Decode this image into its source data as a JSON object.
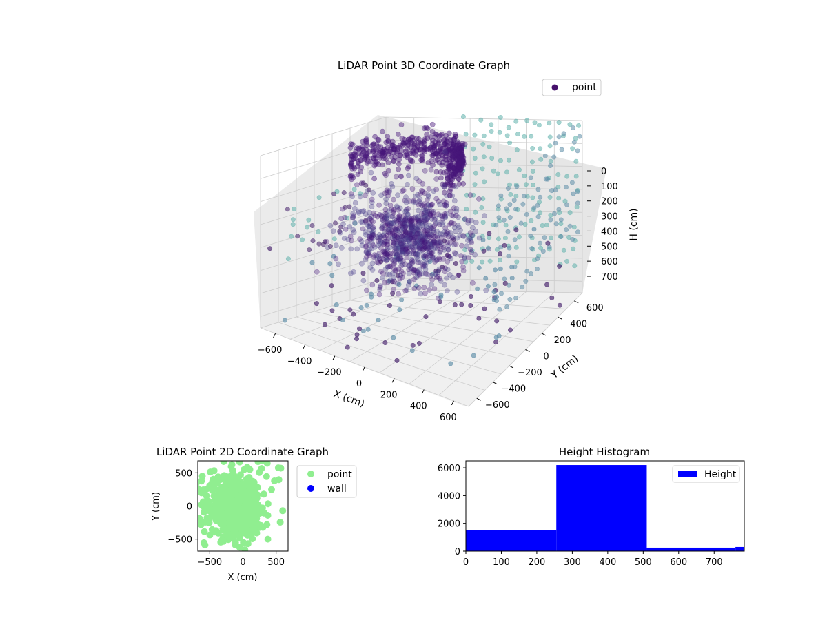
{
  "colors": {
    "point_cyan": "#5fb0ab",
    "point_purple": "#45206b",
    "point_teal": "#5e8ea8",
    "dense_purple": "#46177a",
    "dense_purple_mid": "#4a3f8c",
    "scatter2d_green": "#90ee90",
    "wall_blue": "#0000ff",
    "bar_blue": "#0000ff",
    "pane_fill": "#f2f2f2",
    "grid": "#cccccc"
  },
  "chart_data": [
    {
      "type": "scatter",
      "projection": "3d",
      "title": "LiDAR Point 3D Coordinate Graph",
      "xlabel": "X (cm)",
      "ylabel": "Y (cm)",
      "zlabel": "H (cm)",
      "x_ticks": [
        "−600",
        "−400",
        "−200",
        "0",
        "200",
        "400",
        "600"
      ],
      "y_ticks": [
        "−600",
        "−400",
        "−200",
        "0",
        "200",
        "400",
        "600"
      ],
      "z_ticks": [
        "0",
        "100",
        "200",
        "300",
        "400",
        "500",
        "600",
        "700"
      ],
      "xlim": [
        -700,
        700
      ],
      "ylim": [
        -700,
        700
      ],
      "zlim": [
        0,
        750
      ],
      "z_inverted": true,
      "legend": {
        "labels": [
          "point"
        ],
        "placement": "upper-right"
      },
      "grid": true
    },
    {
      "type": "scatter",
      "title": "LiDAR Point 2D Coordinate Graph",
      "xlabel": "X (cm)",
      "ylabel": "Y (cm)",
      "x_ticks": [
        "−500",
        "0",
        "500"
      ],
      "y_ticks": [
        "500",
        "0",
        "−500"
      ],
      "xlim": [
        -680,
        680
      ],
      "ylim": [
        -680,
        680
      ],
      "legend": {
        "labels": [
          "point",
          "wall"
        ],
        "placement": "outside-right"
      },
      "series": [
        {
          "name": "point",
          "color": "#90ee90"
        },
        {
          "name": "wall",
          "color": "#0000ff",
          "values": []
        }
      ]
    },
    {
      "type": "bar",
      "title": "Height Histogram",
      "legend": {
        "labels": [
          "Height"
        ],
        "placement": "upper-right"
      },
      "x_ticks": [
        "0",
        "100",
        "200",
        "300",
        "400",
        "500",
        "600",
        "700"
      ],
      "y_ticks": [
        "0",
        "2000",
        "4000",
        "6000"
      ],
      "xlim": [
        0,
        785
      ],
      "ylim": [
        0,
        6500
      ],
      "bins": [
        {
          "x0": 0,
          "x1": 255,
          "count": 1500
        },
        {
          "x0": 255,
          "x1": 510,
          "count": 6200
        },
        {
          "x0": 510,
          "x1": 760,
          "count": 250
        },
        {
          "x0": 760,
          "x1": 785,
          "count": 300
        }
      ]
    }
  ]
}
